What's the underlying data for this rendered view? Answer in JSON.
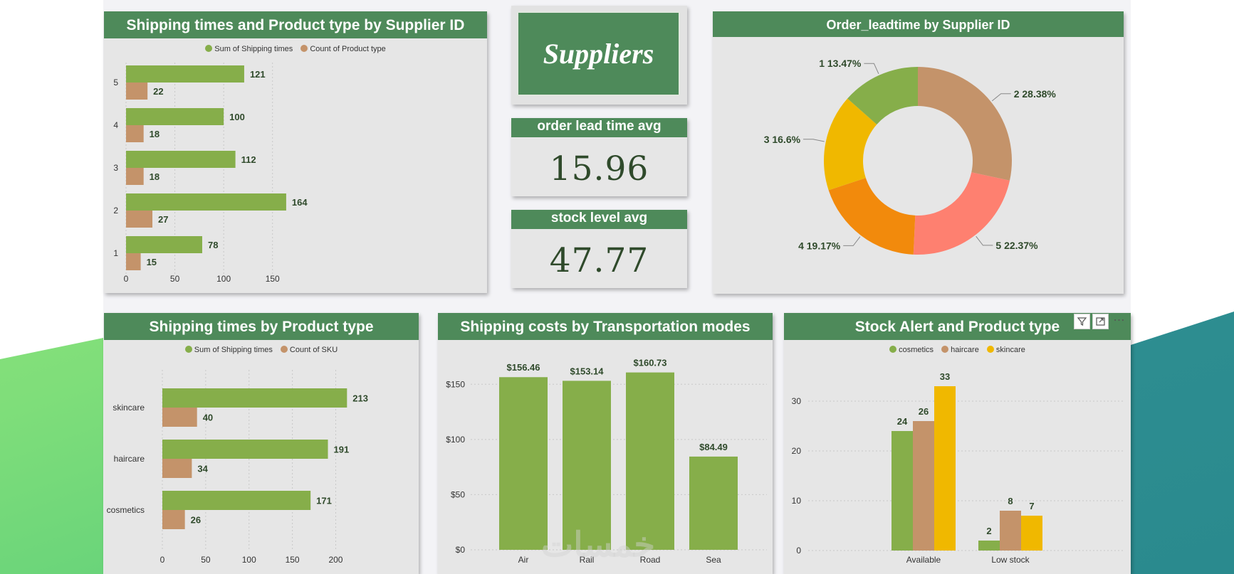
{
  "brand_title": "Suppliers",
  "watermark": "خمسات",
  "colors": {
    "header_green": "#4e8a5a",
    "bar_green": "#86ae4a",
    "bar_tan": "#c4936a",
    "yellow": "#f0b800",
    "orange": "#f28a0c",
    "salmon": "#fe8070",
    "label_dark": "#2f4a2b"
  },
  "kpis": [
    {
      "title": "order lead time avg",
      "value": "15.96"
    },
    {
      "title": "stock level avg",
      "value": "47.77"
    }
  ],
  "toolbar": [
    "filter-icon",
    "focus-mode-icon",
    "more-options-icon"
  ],
  "toolbar_glyphs": {
    "more": "⋯"
  },
  "charts": {
    "supplier_shipping": {
      "title": "Shipping times and Product type by Supplier ID",
      "legend": [
        "Sum of Shipping times",
        "Count of Product type"
      ]
    },
    "leadtime_donut": {
      "title": "Order_leadtime by Supplier ID"
    },
    "product_shipping": {
      "title": "Shipping times by Product type",
      "legend": [
        "Sum of Shipping times",
        "Count of SKU"
      ]
    },
    "transport_costs": {
      "title": "Shipping costs by Transportation modes"
    },
    "stock_alert": {
      "title": "Stock Alert and Product type",
      "legend": [
        "cosmetics",
        "haircare",
        "skincare"
      ]
    }
  },
  "chart_data": [
    {
      "id": "supplier_shipping",
      "type": "bar",
      "orientation": "horizontal",
      "title": "Shipping times and Product type by Supplier ID",
      "categories": [
        "5",
        "4",
        "3",
        "2",
        "1"
      ],
      "series": [
        {
          "name": "Sum of Shipping times",
          "values": [
            121,
            100,
            112,
            164,
            78
          ]
        },
        {
          "name": "Count of Product type",
          "values": [
            22,
            18,
            18,
            27,
            15
          ]
        }
      ],
      "xticks": [
        0,
        50,
        100,
        150
      ],
      "xlim": [
        0,
        175
      ],
      "grid": true,
      "legend": "top"
    },
    {
      "id": "leadtime_donut",
      "type": "pie",
      "donut": true,
      "title": "Order_leadtime by Supplier ID",
      "slices": [
        {
          "label": "2",
          "percent": 28.38,
          "pct_text": "28.38%",
          "color": "#c4936a"
        },
        {
          "label": "5",
          "percent": 22.37,
          "pct_text": "22.37%",
          "color": "#fe8070"
        },
        {
          "label": "4",
          "percent": 19.17,
          "pct_text": "19.17%",
          "color": "#f28a0c"
        },
        {
          "label": "3",
          "percent": 16.6,
          "pct_text": "16.6%",
          "color": "#f0b800"
        },
        {
          "label": "1",
          "percent": 13.47,
          "pct_text": "13.47%",
          "color": "#86ae4a"
        }
      ]
    },
    {
      "id": "product_shipping",
      "type": "bar",
      "orientation": "horizontal",
      "title": "Shipping times by Product type",
      "categories": [
        "skincare",
        "haircare",
        "cosmetics"
      ],
      "series": [
        {
          "name": "Sum of Shipping times",
          "values": [
            213,
            191,
            171
          ]
        },
        {
          "name": "Count of SKU",
          "values": [
            40,
            34,
            26
          ]
        }
      ],
      "xticks": [
        0,
        50,
        100,
        150,
        200
      ],
      "xlim": [
        0,
        230
      ],
      "grid": true,
      "legend": "top"
    },
    {
      "id": "transport_costs",
      "type": "bar",
      "title": "Shipping costs by Transportation modes",
      "categories": [
        "Air",
        "Rail",
        "Road",
        "Sea"
      ],
      "values": [
        156.46,
        153.14,
        160.73,
        84.49
      ],
      "value_labels": [
        "$156.46",
        "$153.14",
        "$160.73",
        "$84.49"
      ],
      "yticks": [
        0,
        50,
        100,
        150
      ],
      "ytick_labels": [
        "$0",
        "$50",
        "$100",
        "$150"
      ],
      "ylim": [
        0,
        165
      ],
      "grid": true
    },
    {
      "id": "stock_alert",
      "type": "bar",
      "title": "Stock Alert and Product type",
      "categories": [
        "Available",
        "Low stock"
      ],
      "series": [
        {
          "name": "cosmetics",
          "values": [
            24,
            2
          ]
        },
        {
          "name": "haircare",
          "values": [
            26,
            8
          ]
        },
        {
          "name": "skincare",
          "values": [
            33,
            7
          ]
        }
      ],
      "yticks": [
        0,
        10,
        20,
        30
      ],
      "ylim": [
        0,
        36
      ],
      "grid": true,
      "legend": "top"
    }
  ]
}
